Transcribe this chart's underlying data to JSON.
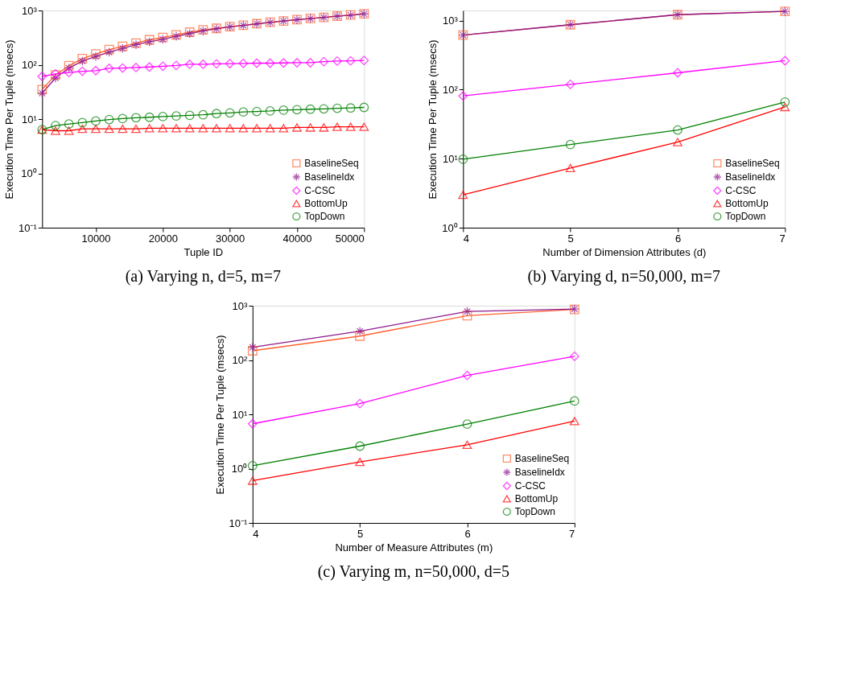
{
  "chart_data": [
    {
      "type": "line",
      "title": "(a) Varying n, d=5, m=7",
      "xlabel": "Tuple ID",
      "ylabel": "Execution Time Per Tuple (msecs)",
      "log": "y",
      "grid": false,
      "legend": "bottom right",
      "x": [
        2000,
        4000,
        6000,
        8000,
        10000,
        12000,
        14000,
        16000,
        18000,
        20000,
        22000,
        24000,
        26000,
        28000,
        30000,
        32000,
        34000,
        36000,
        38000,
        40000,
        42000,
        44000,
        46000,
        48000,
        50000
      ],
      "xlim": [
        2000,
        50000
      ],
      "xticks": [
        10000,
        20000,
        30000,
        40000,
        50000
      ],
      "ylim": [
        0.1,
        1000
      ],
      "yticks": [
        {
          "value": 0.1,
          "label": "10⁻¹"
        },
        {
          "value": 1,
          "label": "10⁰"
        },
        {
          "value": 10,
          "label": "10¹"
        },
        {
          "value": 100,
          "label": "10²"
        },
        {
          "value": 1000,
          "label": "10³"
        }
      ],
      "series": [
        {
          "name": "BaselineSeq",
          "color": "#ff6030",
          "marker": "square",
          "values": [
            35,
            65,
            96,
            130,
            158,
            190,
            218,
            250,
            288,
            317,
            354,
            398,
            438,
            468,
            505,
            534,
            570,
            608,
            641,
            677,
            715,
            746,
            788,
            823,
            868
          ]
        },
        {
          "name": "BaselineIdx",
          "color": "#8e1a8e",
          "marker": "cross",
          "values": [
            30,
            57,
            87,
            117,
            142,
            171,
            200,
            235,
            265,
            295,
            335,
            375,
            420,
            460,
            500,
            530,
            565,
            600,
            640,
            675,
            710,
            745,
            785,
            820,
            865
          ]
        },
        {
          "name": "C-CSC",
          "color": "#ff00ff",
          "marker": "diamond",
          "values": [
            61,
            68,
            72,
            76,
            78,
            86,
            87,
            89,
            91,
            94,
            97,
            102,
            102,
            104,
            105,
            106,
            107,
            107,
            108,
            109,
            109,
            114,
            117,
            118,
            120
          ]
        },
        {
          "name": "BottomUp",
          "color": "#ff0000",
          "marker": "triangle",
          "values": [
            6.4,
            6.1,
            6.1,
            6.6,
            6.6,
            6.6,
            6.6,
            6.6,
            6.8,
            6.8,
            6.8,
            6.8,
            6.8,
            6.8,
            6.8,
            6.8,
            6.8,
            6.8,
            6.8,
            7.0,
            7.0,
            7.0,
            7.2,
            7.2,
            7.2
          ]
        },
        {
          "name": "TopDown",
          "color": "#008000",
          "marker": "circle",
          "values": [
            6.4,
            7.6,
            8.1,
            8.6,
            9.2,
            9.8,
            10.2,
            10.6,
            10.8,
            11.1,
            11.4,
            11.7,
            12.0,
            12.6,
            13.0,
            13.5,
            13.8,
            14.1,
            14.6,
            14.9,
            15.2,
            15.4,
            15.8,
            16.0,
            16.4
          ]
        }
      ]
    },
    {
      "type": "line",
      "title": "(b) Varying d, n=50,000, m=7",
      "xlabel": "Number of Dimension Attributes (d)",
      "ylabel": "Execution Time Per Tuple (msecs)",
      "log": "y",
      "grid": false,
      "legend": "bottom right",
      "x": [
        4,
        5,
        6,
        7
      ],
      "xlim": [
        4,
        7
      ],
      "xticks": [
        4,
        5,
        6,
        7
      ],
      "ylim": [
        1,
        1400
      ],
      "yticks": [
        {
          "value": 1,
          "label": "10⁰"
        },
        {
          "value": 10,
          "label": "10¹"
        },
        {
          "value": 100,
          "label": "10²"
        },
        {
          "value": 1000,
          "label": "10³"
        }
      ],
      "series": [
        {
          "name": "BaselineSeq",
          "color": "#ff6030",
          "marker": "square",
          "values": [
            617,
            870,
            1216,
            1360
          ]
        },
        {
          "name": "BaselineIdx",
          "color": "#8e1a8e",
          "marker": "cross",
          "values": [
            617,
            870,
            1216,
            1360
          ]
        },
        {
          "name": "C-CSC",
          "color": "#ff00ff",
          "marker": "diamond",
          "values": [
            81,
            119,
            175,
            262
          ]
        },
        {
          "name": "BottomUp",
          "color": "#ff0000",
          "marker": "triangle",
          "values": [
            3.0,
            7.3,
            17.4,
            56
          ]
        },
        {
          "name": "TopDown",
          "color": "#008000",
          "marker": "circle",
          "values": [
            9.8,
            16,
            26,
            66
          ]
        }
      ]
    },
    {
      "type": "line",
      "title": "(c) Varying m, n=50,000, d=5",
      "xlabel": "Number of Measure Attributes (m)",
      "ylabel": "Execution Time Per Tuple (msecs)",
      "log": "y",
      "grid": false,
      "legend": "bottom right",
      "x": [
        4,
        5,
        6,
        7
      ],
      "xlim": [
        4,
        7
      ],
      "xticks": [
        4,
        5,
        6,
        7
      ],
      "ylim": [
        0.1,
        1000
      ],
      "yticks": [
        {
          "value": 0.1,
          "label": "10⁻¹"
        },
        {
          "value": 1,
          "label": "10⁰"
        },
        {
          "value": 10,
          "label": "10¹"
        },
        {
          "value": 100,
          "label": "10²"
        },
        {
          "value": 1000,
          "label": "10³"
        }
      ],
      "series": [
        {
          "name": "BaselineSeq",
          "color": "#ff6030",
          "marker": "square",
          "values": [
            148,
            276,
            657,
            855
          ]
        },
        {
          "name": "BaselineIdx",
          "color": "#8e1a8e",
          "marker": "cross",
          "values": [
            172,
            340,
            785,
            870
          ]
        },
        {
          "name": "C-CSC",
          "color": "#ff00ff",
          "marker": "diamond",
          "values": [
            6.7,
            15.8,
            52,
            117
          ]
        },
        {
          "name": "BottomUp",
          "color": "#ff0000",
          "marker": "triangle",
          "values": [
            0.6,
            1.33,
            2.75,
            7.5
          ]
        },
        {
          "name": "TopDown",
          "color": "#008000",
          "marker": "circle",
          "values": [
            1.13,
            2.6,
            6.6,
            17.6
          ]
        }
      ]
    }
  ]
}
